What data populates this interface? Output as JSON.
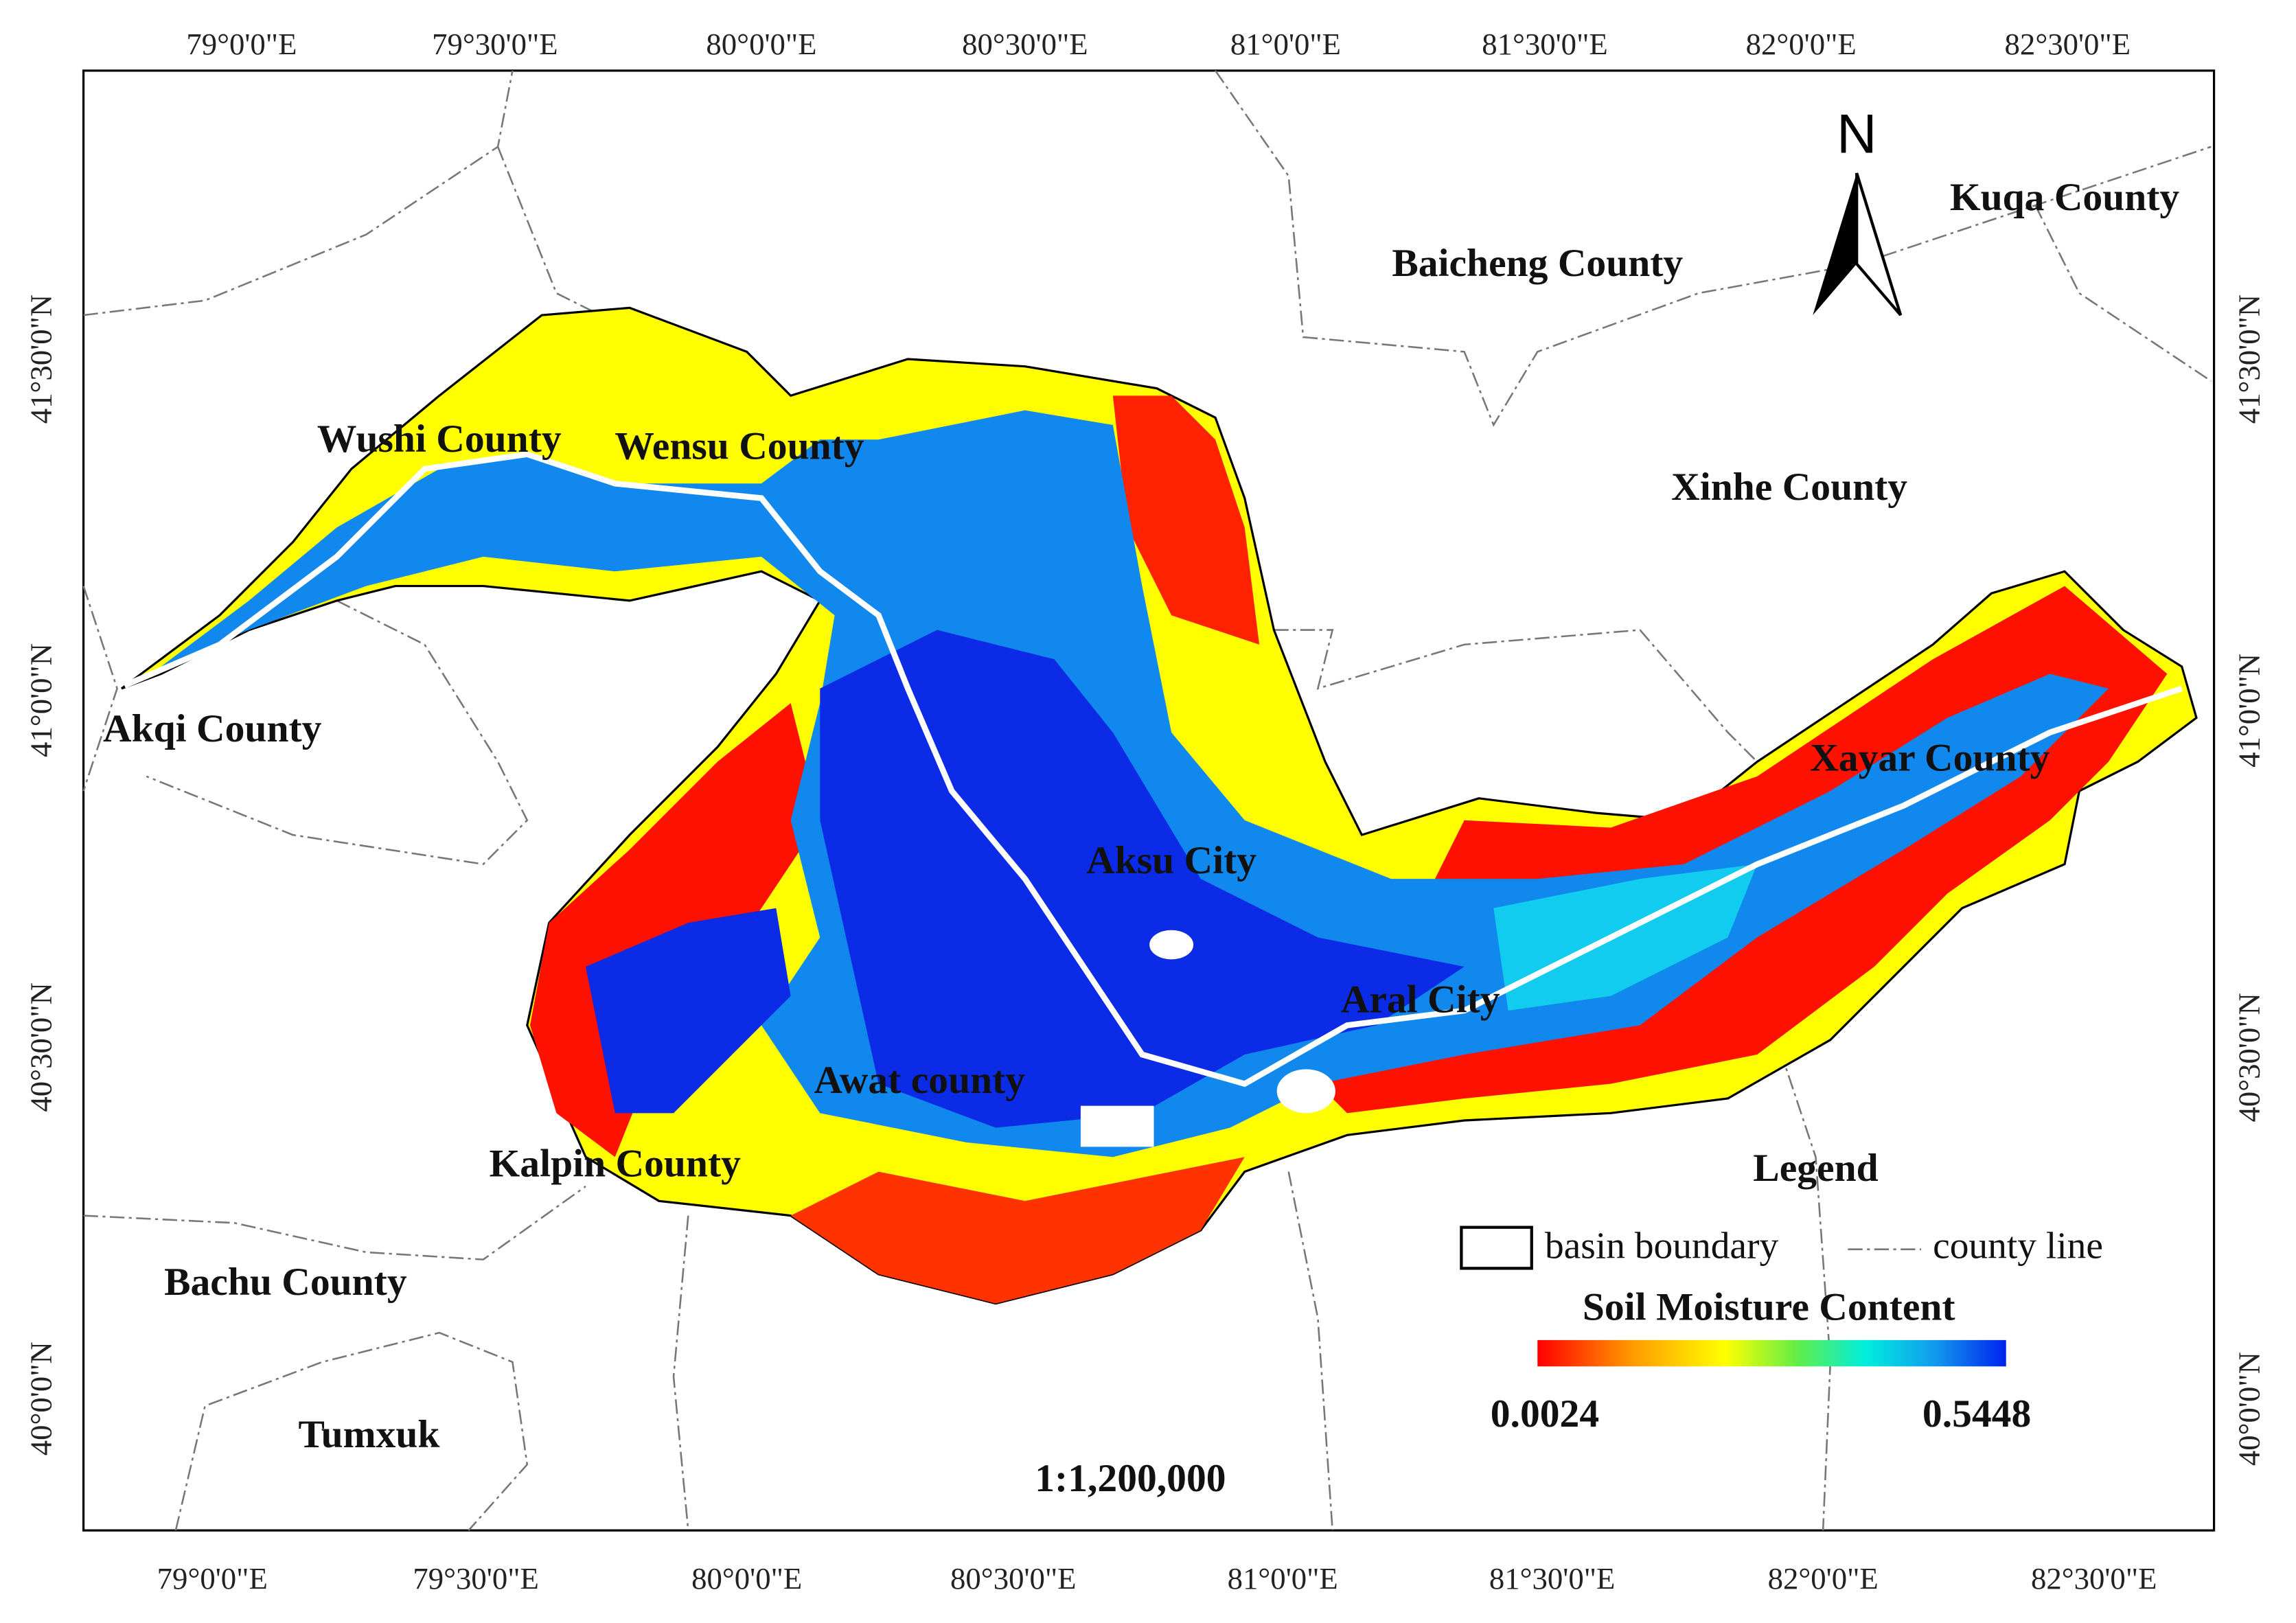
{
  "frame": {
    "top_labels": [
      "79°0'0\"E",
      "79°30'0\"E",
      "80°0'0\"E",
      "80°30'0\"E",
      "81°0'0\"E",
      "81°30'0\"E",
      "82°0'0\"E",
      "82°30'0\"E"
    ],
    "bottom_labels": [
      "79°0'0\"E",
      "79°30'0\"E",
      "80°0'0\"E",
      "80°30'0\"E",
      "81°0'0\"E",
      "81°30'0\"E",
      "82°0'0\"E",
      "82°30'0\"E"
    ],
    "left_labels": [
      "41°30'0\"N",
      "41°0'0\"N",
      "40°30'0\"N",
      "40°0'0\"N"
    ],
    "right_labels": [
      "41°30'0\"N",
      "41°0'0\"N",
      "40°30'0\"N",
      "40°0'0\"N"
    ]
  },
  "places": [
    "Baicheng County",
    "Kuqa County",
    "Xinhe County",
    "Wushi County",
    "Wensu County",
    "Akqi County",
    "Xayar County",
    "Aksu City",
    "Aral City",
    "Awat county",
    "Kalpin County",
    "Bachu County",
    "Tumxuk"
  ],
  "north": "N",
  "legend": {
    "title": "Legend",
    "items": [
      "basin boundary",
      "county line"
    ],
    "colorbar_title": "Soil Moisture Content",
    "min": "0.0024",
    "max": "0.5448"
  },
  "scale": "1:1,200,000"
}
